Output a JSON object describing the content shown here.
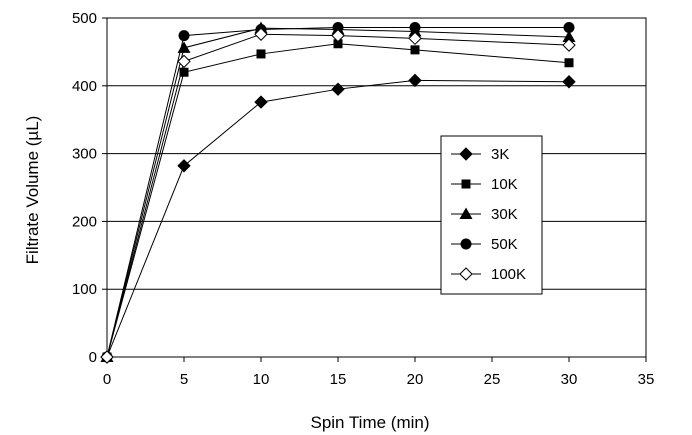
{
  "chart_data": {
    "type": "line",
    "title": "",
    "xlabel": "Spin Time (min)",
    "ylabel": "Filtrate Volume (µL)",
    "xlim": [
      0,
      35
    ],
    "ylim": [
      0,
      500
    ],
    "xticks": [
      0,
      5,
      10,
      15,
      20,
      25,
      30,
      35
    ],
    "yticks": [
      0,
      100,
      200,
      300,
      400,
      500
    ],
    "grid": "horizontal",
    "legend_position": "right-center",
    "x": [
      0,
      5,
      10,
      15,
      20,
      30
    ],
    "series": [
      {
        "name": "3K",
        "marker": "diamond-filled",
        "values": [
          0,
          282,
          376,
          395,
          408,
          406
        ]
      },
      {
        "name": "10K",
        "marker": "square-filled",
        "values": [
          0,
          420,
          447,
          462,
          453,
          434
        ]
      },
      {
        "name": "30K",
        "marker": "triangle-filled",
        "values": [
          0,
          456,
          485,
          483,
          480,
          472
        ]
      },
      {
        "name": "50K",
        "marker": "circle-filled",
        "values": [
          0,
          474,
          483,
          486,
          486,
          486
        ]
      },
      {
        "name": "100K",
        "marker": "diamond-open",
        "values": [
          0,
          436,
          476,
          474,
          470,
          460
        ]
      }
    ]
  }
}
